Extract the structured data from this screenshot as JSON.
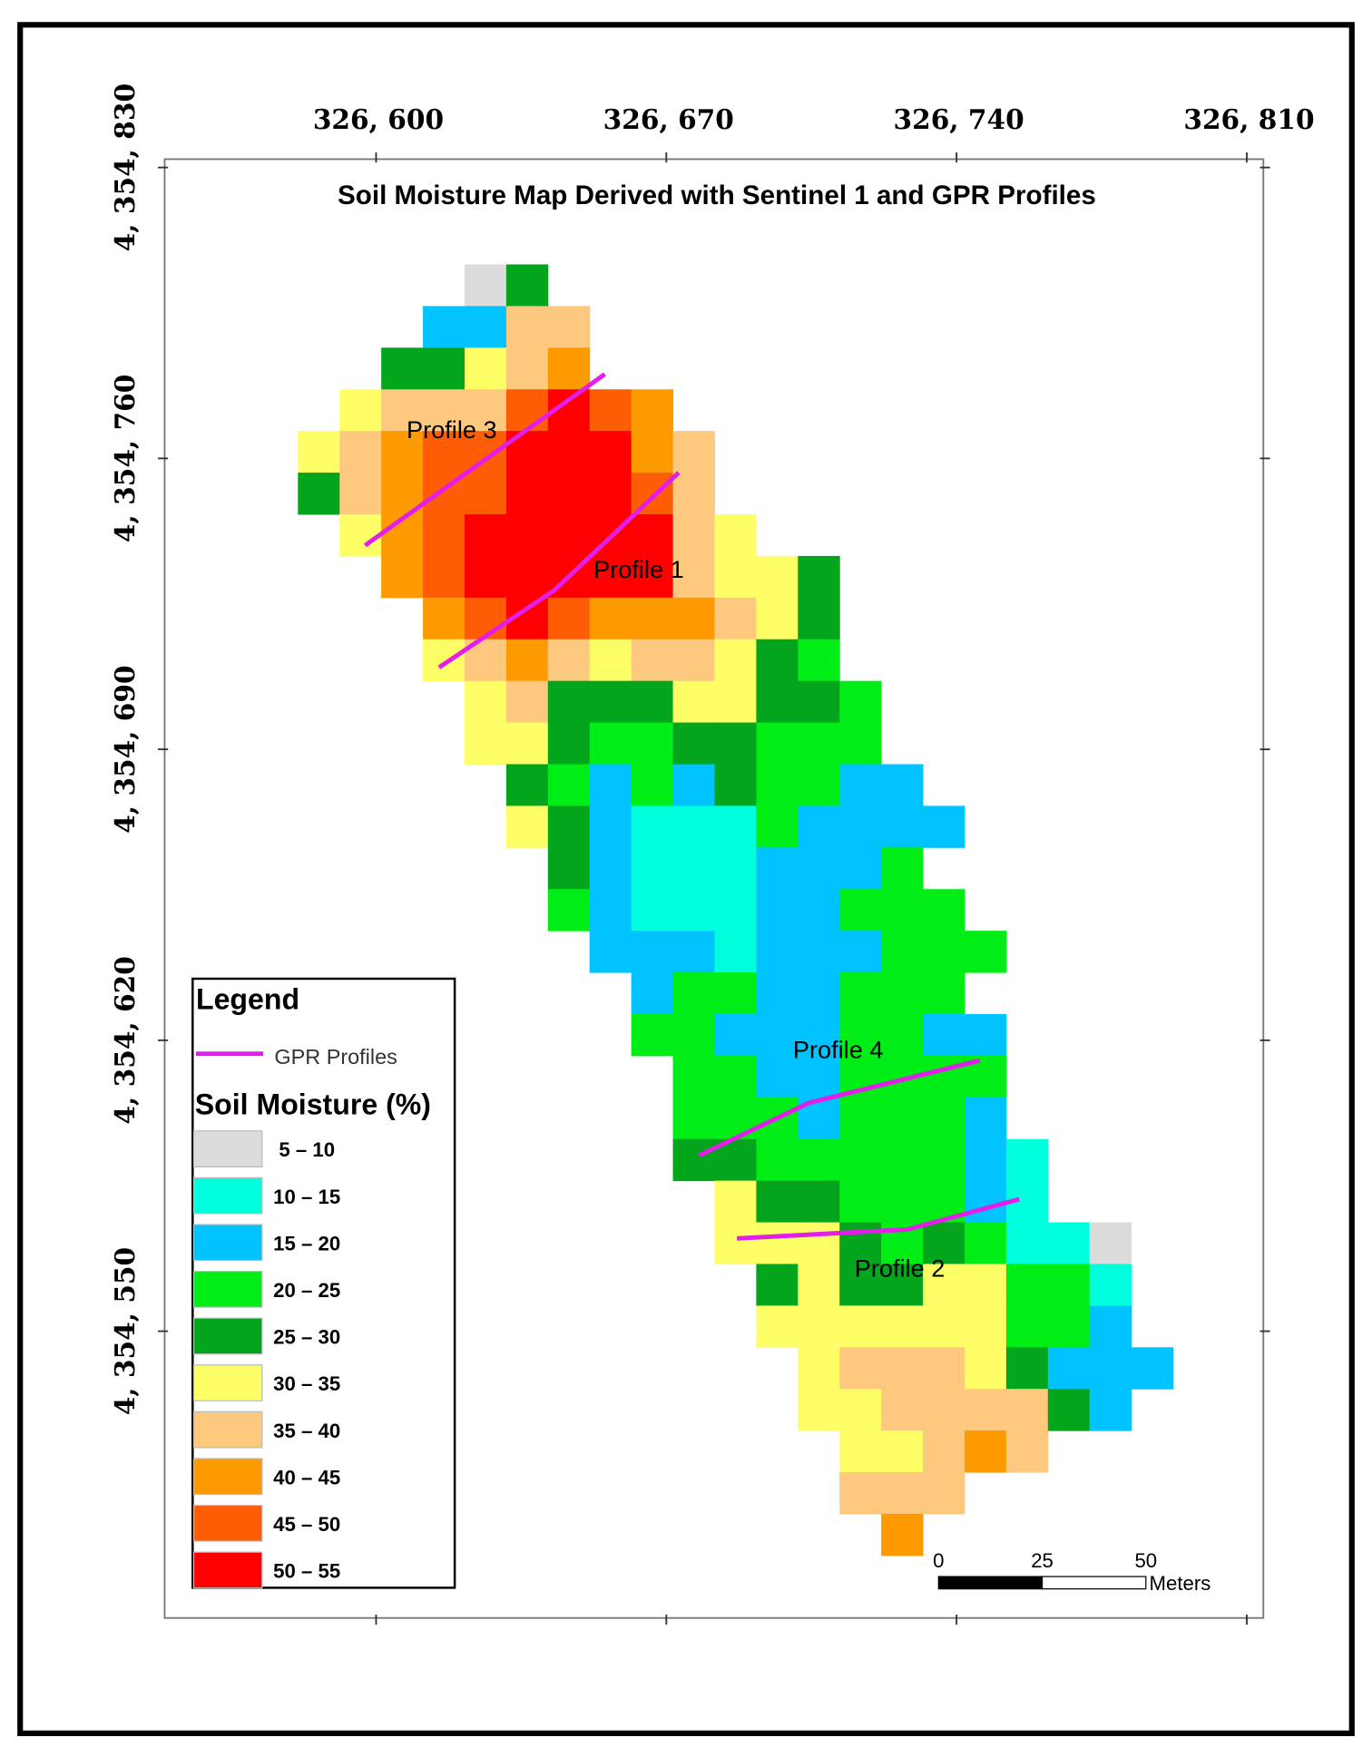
{
  "map": {
    "title": "Soil Moisture Map Derived with Sentinel 1 and GPR Profiles",
    "xlim": [
      326549,
      326814
    ],
    "ylim": [
      4354481,
      4354832
    ],
    "xticks": [
      {
        "value": 326600,
        "label": "326, 600"
      },
      {
        "value": 326670,
        "label": "326, 670"
      },
      {
        "value": 326740,
        "label": "326, 740"
      },
      {
        "value": 326810,
        "label": "326, 810"
      }
    ],
    "yticks": [
      {
        "value": 4354830,
        "label": "4, 354, 830"
      },
      {
        "value": 4354760,
        "label": "4, 354, 760"
      },
      {
        "value": 4354690,
        "label": "4, 354, 690"
      },
      {
        "value": 4354620,
        "label": "4, 354, 620"
      },
      {
        "value": 4354550,
        "label": "4, 354, 550"
      }
    ],
    "profiles": [
      "Profile 1",
      "Profile 2",
      "Profile 3",
      "Profile 4"
    ],
    "legend": {
      "title": "Legend",
      "line_label": "GPR Profiles",
      "line_color": "#e31ee8",
      "classes_title": "Soil Moisture (%)",
      "classes": [
        {
          "label": "5 – 10",
          "color": "#dcdcdc"
        },
        {
          "label": "10 – 15",
          "color": "#00ffdc"
        },
        {
          "label": "15 – 20",
          "color": "#00c3ff"
        },
        {
          "label": "20 – 25",
          "color": "#00ee16"
        },
        {
          "label": "25 – 30",
          "color": "#02a51b"
        },
        {
          "label": "30 – 35",
          "color": "#fefe66"
        },
        {
          "label": "35 – 40",
          "color": "#fcc97f"
        },
        {
          "label": "40 – 45",
          "color": "#fd9a00"
        },
        {
          "label": "45 – 50",
          "color": "#fe5c05"
        },
        {
          "label": "50 – 55",
          "color": "#fe0000"
        }
      ]
    },
    "scale_bar": {
      "ticks": [
        0,
        25,
        50
      ],
      "unit": "Meters"
    }
  }
}
